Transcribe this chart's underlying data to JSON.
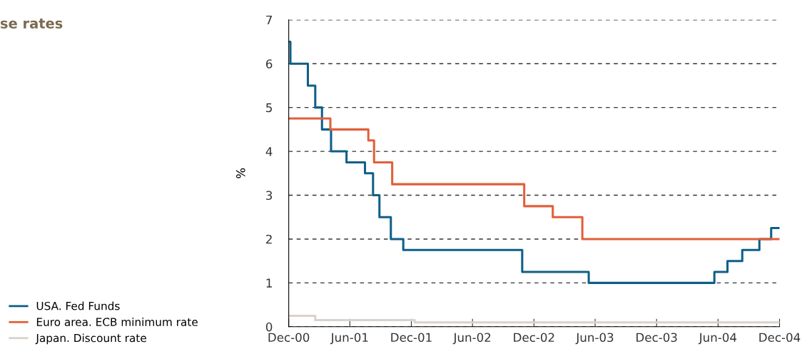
{
  "chart_data": {
    "type": "step",
    "title": "se rates",
    "ylabel": "%",
    "xlim": [
      "2000-12-01",
      "2004-12-01"
    ],
    "xticks": [
      {
        "value": "2000-12-01",
        "label": "Dec-00"
      },
      {
        "value": "2001-06-01",
        "label": "Jun-01"
      },
      {
        "value": "2001-12-01",
        "label": "Dec-01"
      },
      {
        "value": "2002-06-01",
        "label": "Jun-02"
      },
      {
        "value": "2002-12-01",
        "label": "Dec-02"
      },
      {
        "value": "2003-06-01",
        "label": "Jun-03"
      },
      {
        "value": "2003-12-01",
        "label": "Dec-03"
      },
      {
        "value": "2004-06-01",
        "label": "Jun-04"
      },
      {
        "value": "2004-12-01",
        "label": "Dec-04"
      }
    ],
    "ylim": [
      0,
      7
    ],
    "yticks": [
      0,
      1,
      2,
      3,
      4,
      5,
      6,
      7
    ],
    "grid": "y",
    "legend": "bottom left",
    "line_style": "solid",
    "series": [
      {
        "name": "USA. Fed Funds",
        "color": "#0f5f87",
        "x": [
          "2000-12-01",
          "2000-12-06",
          "2001-01-27",
          "2001-02-18",
          "2001-03-10",
          "2001-04-06",
          "2001-05-22",
          "2001-07-16",
          "2001-08-09",
          "2001-08-28",
          "2001-10-01",
          "2001-11-07",
          "2002-10-27",
          "2003-05-13",
          "2004-05-21",
          "2004-06-29",
          "2004-08-12",
          "2004-10-02",
          "2004-11-06",
          "2004-12-01"
        ],
        "values": [
          6.5,
          6.0,
          5.5,
          5.0,
          4.5,
          4.0,
          3.75,
          3.5,
          3.0,
          2.5,
          2.0,
          1.75,
          1.25,
          1.0,
          1.25,
          1.5,
          1.75,
          2.0,
          2.25,
          2.25
        ]
      },
      {
        "name": "Euro area. ECB minimum rate",
        "color": "#e0603a",
        "x": [
          "2000-12-01",
          "2001-04-04",
          "2001-07-26",
          "2001-08-12",
          "2001-10-05",
          "2002-11-02",
          "2003-01-26",
          "2003-04-24",
          "2004-12-01"
        ],
        "values": [
          4.75,
          4.5,
          4.25,
          3.75,
          3.25,
          2.75,
          2.5,
          2.0,
          2.0
        ]
      },
      {
        "name": "Japan. Discount rate",
        "color": "#d9d2cc",
        "x": [
          "2000-12-01",
          "2001-02-18",
          "2001-12-11",
          "2004-12-01"
        ],
        "values": [
          0.25,
          0.15,
          0.1,
          0.1
        ]
      }
    ]
  }
}
